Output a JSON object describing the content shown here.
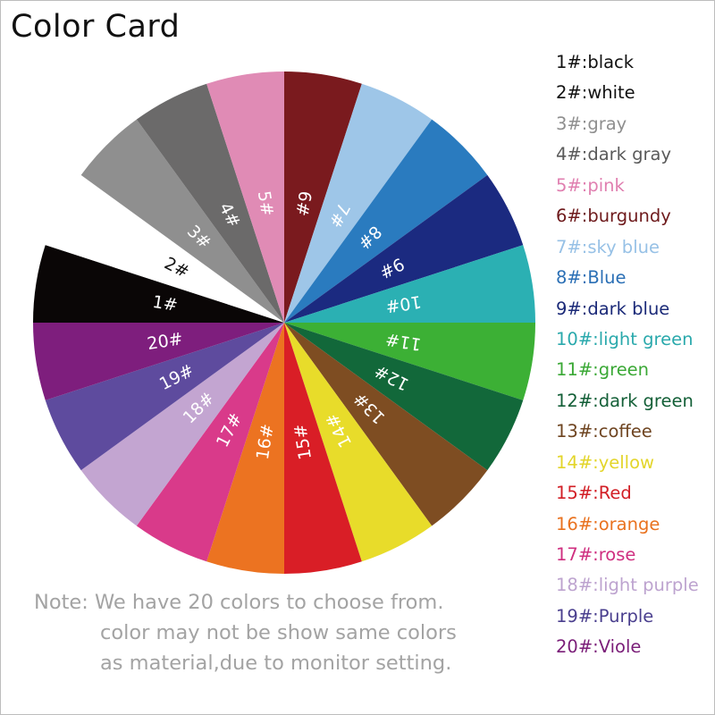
{
  "title": "Color Card",
  "colors": [
    {
      "label": "1#",
      "legend": "1#:black",
      "color": "#0a0606",
      "text_color": "#ffffff",
      "legend_color": "#111111"
    },
    {
      "label": "2#",
      "legend": "2#:white",
      "color": "#ffffff",
      "text_color": "#111111",
      "legend_color": "#111111"
    },
    {
      "label": "3#",
      "legend": "3#:gray",
      "color": "#8f8f8f",
      "text_color": "#ffffff",
      "legend_color": "#8f8f8f"
    },
    {
      "label": "4#",
      "legend": "4#:dark gray",
      "color": "#6b6a6a",
      "text_color": "#ffffff",
      "legend_color": "#5a5a5a"
    },
    {
      "label": "5#",
      "legend": "5#:pink",
      "color": "#e08bb5",
      "text_color": "#ffffff",
      "legend_color": "#e07fb0"
    },
    {
      "label": "6#",
      "legend": "6#:burgundy",
      "color": "#7a1a1e",
      "text_color": "#ffffff",
      "legend_color": "#6e1a1c"
    },
    {
      "label": "7#",
      "legend": "7#:sky blue",
      "color": "#9ec6e8",
      "text_color": "#ffffff",
      "legend_color": "#97c1e6"
    },
    {
      "label": "8#",
      "legend": "8#:Blue",
      "color": "#2a7bbf",
      "text_color": "#ffffff",
      "legend_color": "#2a6fb5"
    },
    {
      "label": "9#",
      "legend": "9#:dark blue",
      "color": "#1b2a80",
      "text_color": "#ffffff",
      "legend_color": "#1b2a78"
    },
    {
      "label": "10#",
      "legend": "10#:light green",
      "color": "#2bb0b3",
      "text_color": "#ffffff",
      "legend_color": "#2aa9ac"
    },
    {
      "label": "11#",
      "legend": "11#:green",
      "color": "#3cb035",
      "text_color": "#ffffff",
      "legend_color": "#3aa835"
    },
    {
      "label": "12#",
      "legend": "12#:dark green",
      "color": "#12683a",
      "text_color": "#ffffff",
      "legend_color": "#135f37"
    },
    {
      "label": "13#",
      "legend": "13#:coffee",
      "color": "#7e4d22",
      "text_color": "#ffffff",
      "legend_color": "#6e4420"
    },
    {
      "label": "14#",
      "legend": "14#:yellow",
      "color": "#e8dc2a",
      "text_color": "#ffffff",
      "legend_color": "#e3d52a"
    },
    {
      "label": "15#",
      "legend": "15#:Red",
      "color": "#d91e26",
      "text_color": "#ffffff",
      "legend_color": "#d21f26"
    },
    {
      "label": "16#",
      "legend": "16#:orange",
      "color": "#ec7321",
      "text_color": "#ffffff",
      "legend_color": "#e9721f"
    },
    {
      "label": "17#",
      "legend": "17#:rose",
      "color": "#d93a8a",
      "text_color": "#ffffff",
      "legend_color": "#cf2f80"
    },
    {
      "label": "18#",
      "legend": "18#:light purple",
      "color": "#c3a5d1",
      "text_color": "#ffffff",
      "legend_color": "#bda3cf"
    },
    {
      "label": "19#",
      "legend": "19#:Purple",
      "color": "#5e4b9e",
      "text_color": "#ffffff",
      "legend_color": "#4a3f8e"
    },
    {
      "label": "20#",
      "legend": "20#:Viole",
      "color": "#7e1e7d",
      "text_color": "#ffffff",
      "legend_color": "#7a1d78"
    }
  ],
  "note": [
    "Note: We have 20 colors to choose from.",
    "color may not be show same colors",
    "as material,due to monitor setting."
  ]
}
